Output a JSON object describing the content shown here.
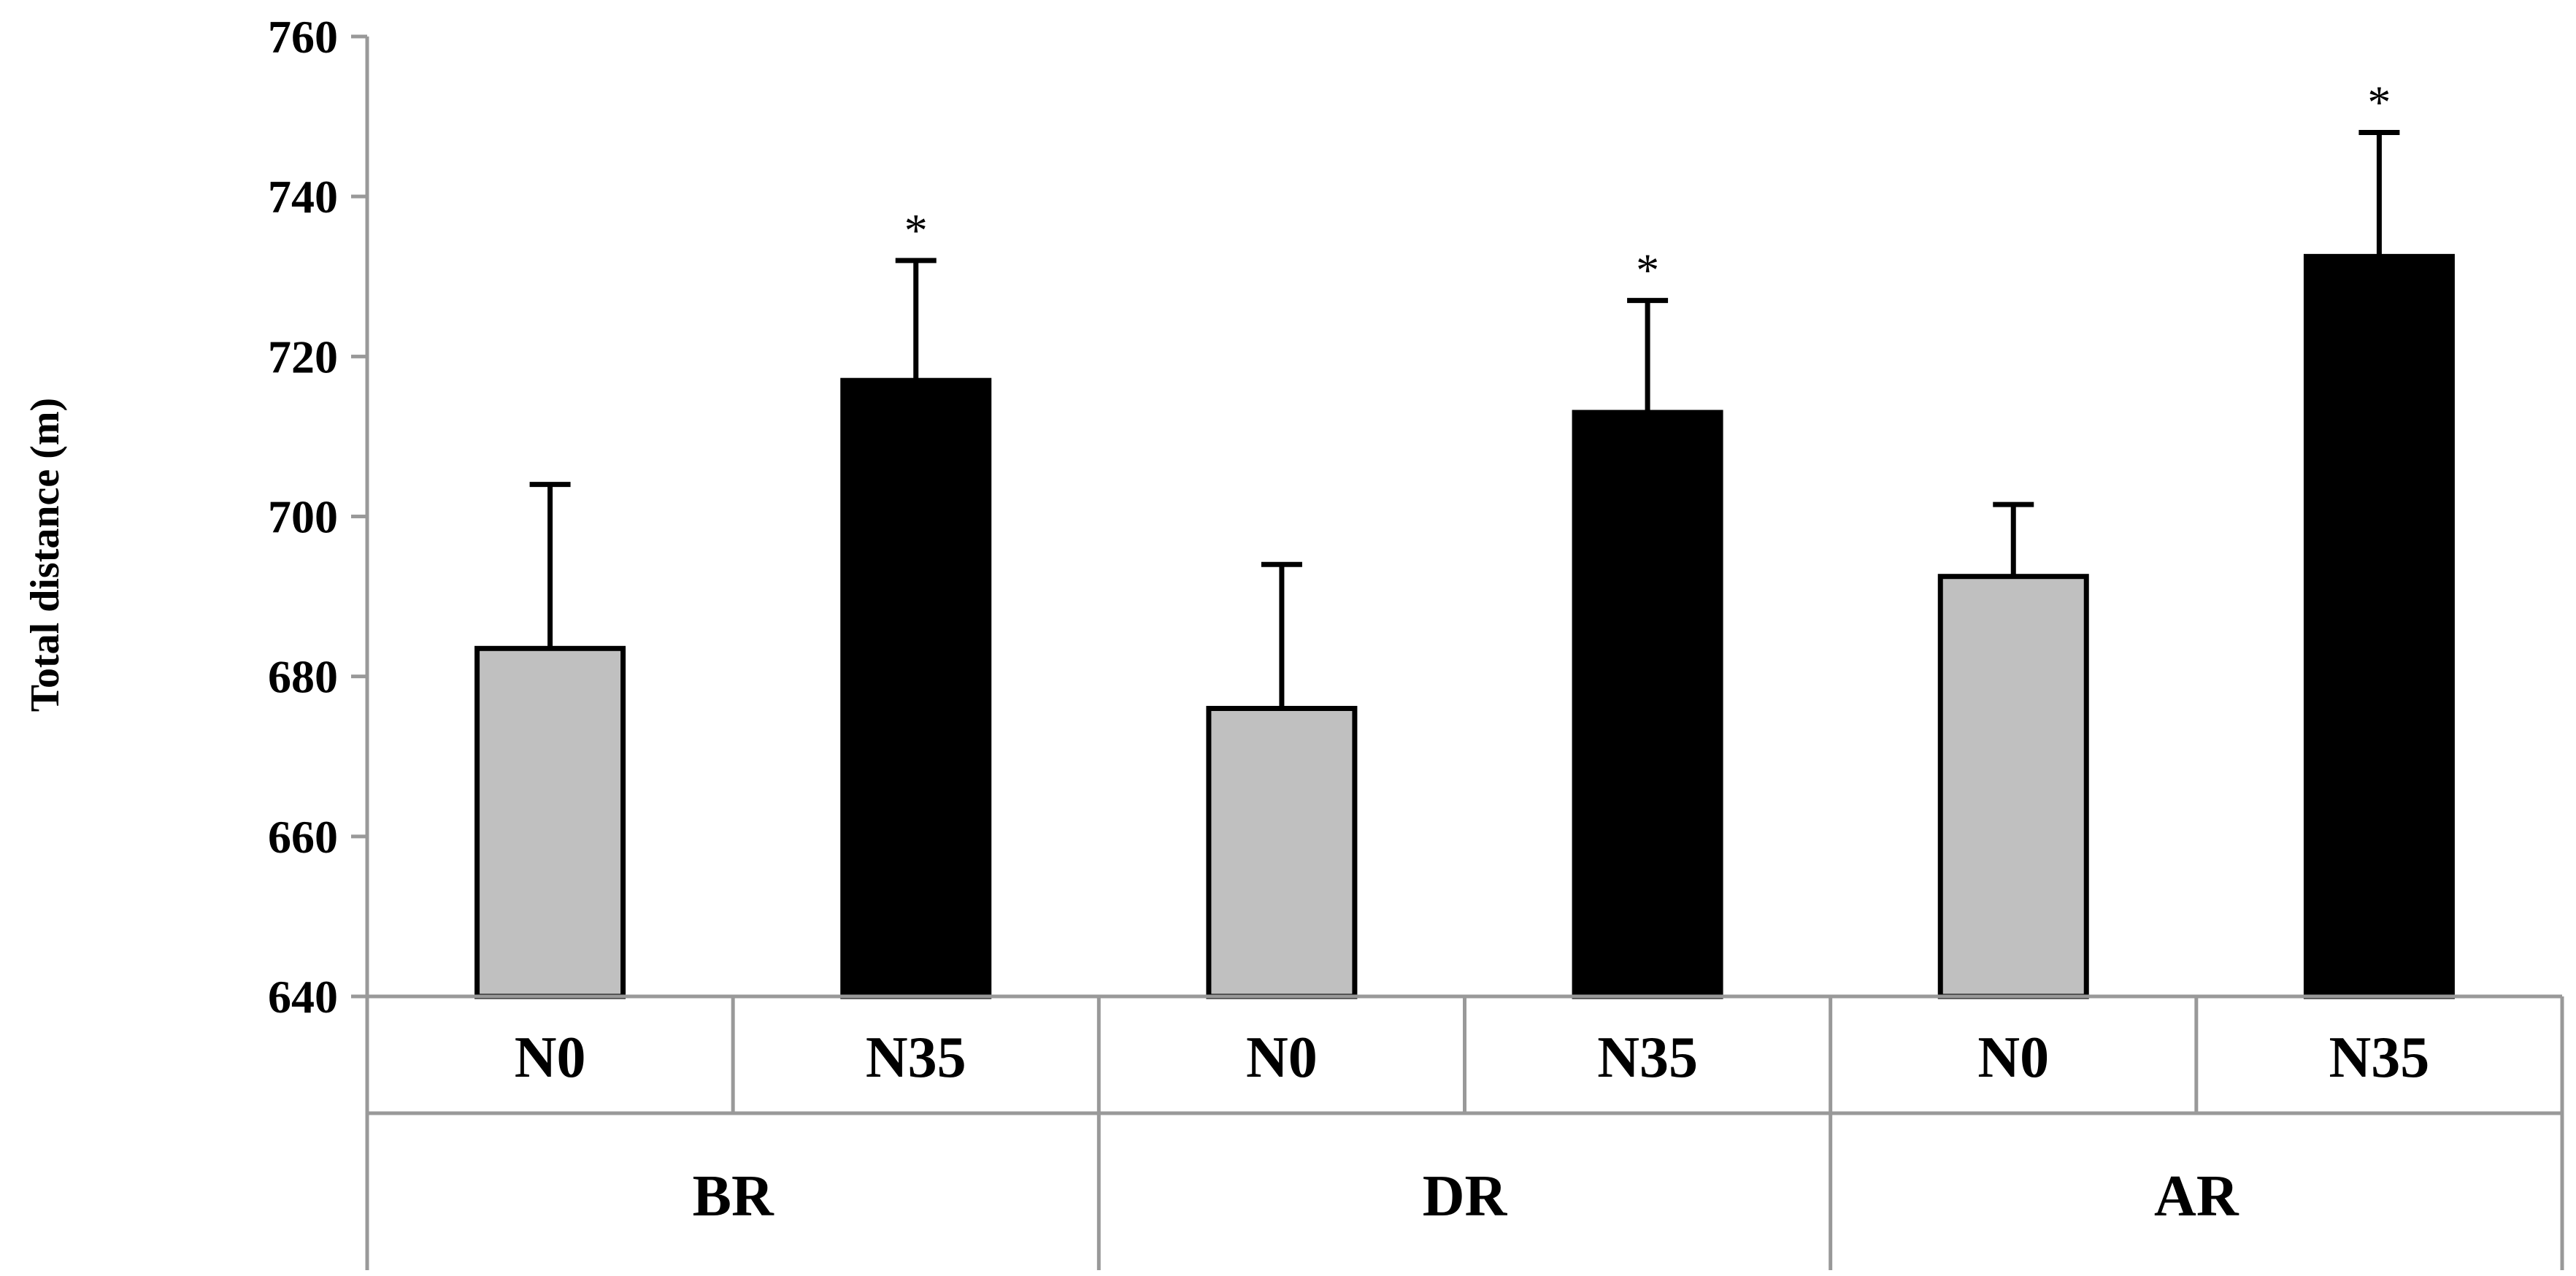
{
  "chart_data": {
    "type": "bar",
    "ylabel": "Total distance (m)",
    "ylim": [
      640,
      760
    ],
    "yticks": [
      640,
      660,
      680,
      700,
      720,
      740,
      760
    ],
    "groups": [
      "BR",
      "DR",
      "AR"
    ],
    "subcategories": [
      "N0",
      "N35"
    ],
    "bars": [
      {
        "group": "BR",
        "label": "N0",
        "value": 683.5,
        "error": 20.5,
        "color": "#c0c0c0",
        "marker": ""
      },
      {
        "group": "BR",
        "label": "N35",
        "value": 717,
        "error": 15,
        "color": "#000000",
        "marker": "*"
      },
      {
        "group": "DR",
        "label": "N0",
        "value": 676,
        "error": 18,
        "color": "#c0c0c0",
        "marker": ""
      },
      {
        "group": "DR",
        "label": "N35",
        "value": 713,
        "error": 14,
        "color": "#000000",
        "marker": "*"
      },
      {
        "group": "AR",
        "label": "N0",
        "value": 692.5,
        "error": 9,
        "color": "#c0c0c0",
        "marker": ""
      },
      {
        "group": "AR",
        "label": "N35",
        "value": 732.5,
        "error": 15.5,
        "color": "#000000",
        "marker": "*"
      }
    ],
    "grid": false,
    "legend": "none"
  }
}
